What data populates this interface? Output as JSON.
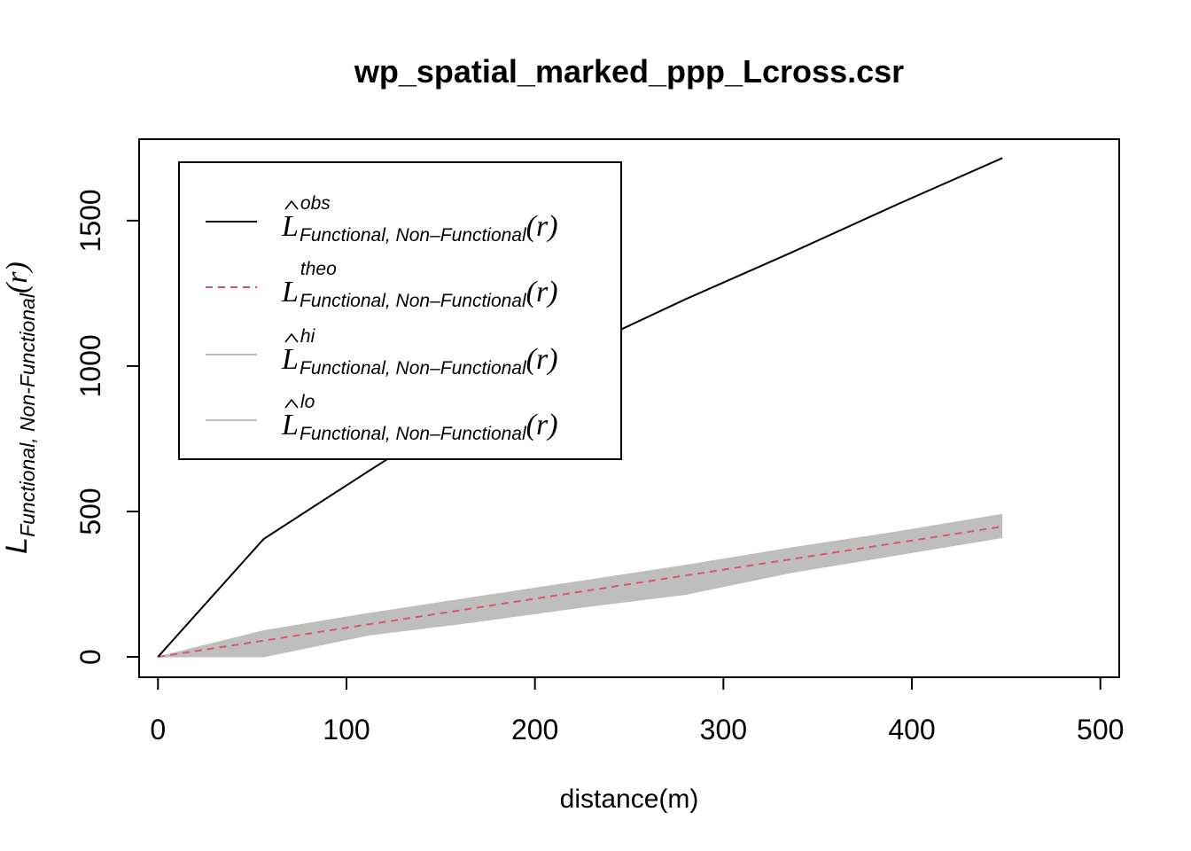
{
  "chart_data": {
    "type": "line",
    "title": "wp_spatial_marked_ppp_Lcross.csr",
    "xlabel": "distance(m)",
    "ylabel": {
      "main": "L",
      "subscript": "Functional, Non-Functional",
      "arg": "(r)"
    },
    "xlim": [
      -10,
      510
    ],
    "ylim": [
      -70,
      1780
    ],
    "x_ticks": [
      0,
      100,
      200,
      300,
      400,
      500
    ],
    "x_tick_labels": [
      "0",
      "100",
      "200",
      "300",
      "400",
      "500"
    ],
    "y_ticks": [
      0,
      500,
      1000,
      1500
    ],
    "y_tick_labels": [
      "0",
      "500",
      "1000",
      "1500"
    ],
    "grid": false,
    "legend_position": "top-left",
    "legend": [
      {
        "key": "obs",
        "main": "L",
        "hat": true,
        "superscript": "obs",
        "subscript": "Functional, Non–Functional",
        "arg": "(r)",
        "color": "#000000",
        "dash": "solid"
      },
      {
        "key": "theo",
        "main": "L",
        "hat": false,
        "superscript": "theo",
        "subscript": "Functional, Non–Functional",
        "arg": "(r)",
        "color": "#DF536B",
        "dash": "dashed"
      },
      {
        "key": "hi",
        "main": "L",
        "hat": true,
        "superscript": "hi",
        "subscript": "Functional, Non–Functional",
        "arg": "(r)",
        "color": "#BEBEBE",
        "dash": "solid"
      },
      {
        "key": "lo",
        "main": "L",
        "hat": true,
        "superscript": "lo",
        "subscript": "Functional, Non–Functional",
        "arg": "(r)",
        "color": "#BEBEBE",
        "dash": "solid"
      }
    ],
    "series": [
      {
        "key": "obs",
        "x": [
          0,
          56,
          112,
          168,
          224,
          280,
          336,
          392,
          448
        ],
        "values": [
          0,
          405,
          640,
          870,
          1060,
          1230,
          1390,
          1555,
          1715
        ]
      },
      {
        "key": "theo",
        "x": [
          0,
          56,
          112,
          168,
          224,
          280,
          336,
          392,
          448
        ],
        "values": [
          0,
          56,
          112,
          168,
          224,
          280,
          336,
          392,
          448
        ]
      },
      {
        "key": "hi",
        "x": [
          0,
          56,
          112,
          168,
          224,
          280,
          336,
          392,
          448
        ],
        "values": [
          0,
          90,
          150,
          205,
          260,
          315,
          375,
          430,
          490
        ]
      },
      {
        "key": "lo",
        "x": [
          0,
          56,
          112,
          168,
          224,
          280,
          336,
          392,
          448
        ],
        "values": [
          0,
          0,
          75,
          120,
          170,
          215,
          290,
          350,
          410
        ]
      }
    ],
    "colors": {
      "obs": "#000000",
      "theo": "#DF536B",
      "envelope": "#BEBEBE"
    }
  }
}
